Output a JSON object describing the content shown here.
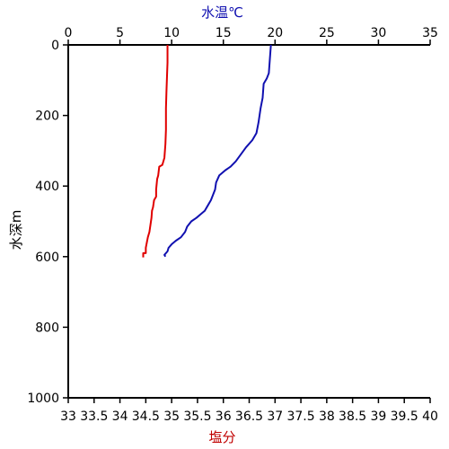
{
  "chart_data": {
    "type": "line",
    "top_axis": {
      "label": "水温℃",
      "label_color": "#1010b0",
      "range": [
        0,
        35
      ],
      "ticks": [
        "0",
        "5",
        "10",
        "15",
        "20",
        "25",
        "30",
        "35"
      ]
    },
    "bottom_axis": {
      "label": "塩分",
      "label_color": "#c00000",
      "range": [
        33,
        40
      ],
      "ticks": [
        "33",
        "33.5",
        "34",
        "34.5",
        "35",
        "35.5",
        "36",
        "36.5",
        "37",
        "37.5",
        "38",
        "38.5",
        "39",
        "39.5",
        "40"
      ]
    },
    "left_axis": {
      "label": "水深m",
      "range": [
        0,
        1000
      ],
      "inverted": true,
      "ticks": [
        "0",
        "200",
        "400",
        "600",
        "800",
        "1000"
      ]
    },
    "grid": false,
    "series": [
      {
        "color": "#e00000",
        "axis": "bottom",
        "points": [
          [
            34.92,
            0
          ],
          [
            34.92,
            50
          ],
          [
            34.91,
            90
          ],
          [
            34.9,
            130
          ],
          [
            34.89,
            180
          ],
          [
            34.89,
            240
          ],
          [
            34.88,
            280
          ],
          [
            34.86,
            320
          ],
          [
            34.82,
            340
          ],
          [
            34.76,
            345
          ],
          [
            34.74,
            370
          ],
          [
            34.72,
            380
          ],
          [
            34.7,
            410
          ],
          [
            34.7,
            430
          ],
          [
            34.66,
            440
          ],
          [
            34.64,
            460
          ],
          [
            34.62,
            470
          ],
          [
            34.61,
            490
          ],
          [
            34.59,
            510
          ],
          [
            34.57,
            530
          ],
          [
            34.54,
            545
          ],
          [
            34.52,
            560
          ],
          [
            34.5,
            575
          ],
          [
            34.5,
            590
          ],
          [
            34.45,
            590
          ],
          [
            34.45,
            602
          ]
        ]
      },
      {
        "color": "#1010b0",
        "axis": "top",
        "points": [
          [
            19.6,
            0
          ],
          [
            19.5,
            40
          ],
          [
            19.4,
            80
          ],
          [
            19.2,
            95
          ],
          [
            18.9,
            110
          ],
          [
            18.8,
            150
          ],
          [
            18.6,
            180
          ],
          [
            18.4,
            220
          ],
          [
            18.2,
            250
          ],
          [
            17.8,
            270
          ],
          [
            17.2,
            290
          ],
          [
            16.7,
            310
          ],
          [
            16.2,
            330
          ],
          [
            15.7,
            345
          ],
          [
            15.2,
            355
          ],
          [
            14.6,
            370
          ],
          [
            14.3,
            390
          ],
          [
            14.2,
            410
          ],
          [
            14.0,
            425
          ],
          [
            13.8,
            440
          ],
          [
            13.5,
            455
          ],
          [
            13.2,
            470
          ],
          [
            12.8,
            480
          ],
          [
            12.4,
            490
          ],
          [
            11.9,
            500
          ],
          [
            11.5,
            515
          ],
          [
            11.3,
            530
          ],
          [
            10.9,
            545
          ],
          [
            10.4,
            555
          ],
          [
            10.0,
            565
          ],
          [
            9.7,
            575
          ],
          [
            9.6,
            585
          ],
          [
            9.3,
            595
          ],
          [
            9.4,
            600
          ]
        ]
      }
    ]
  }
}
